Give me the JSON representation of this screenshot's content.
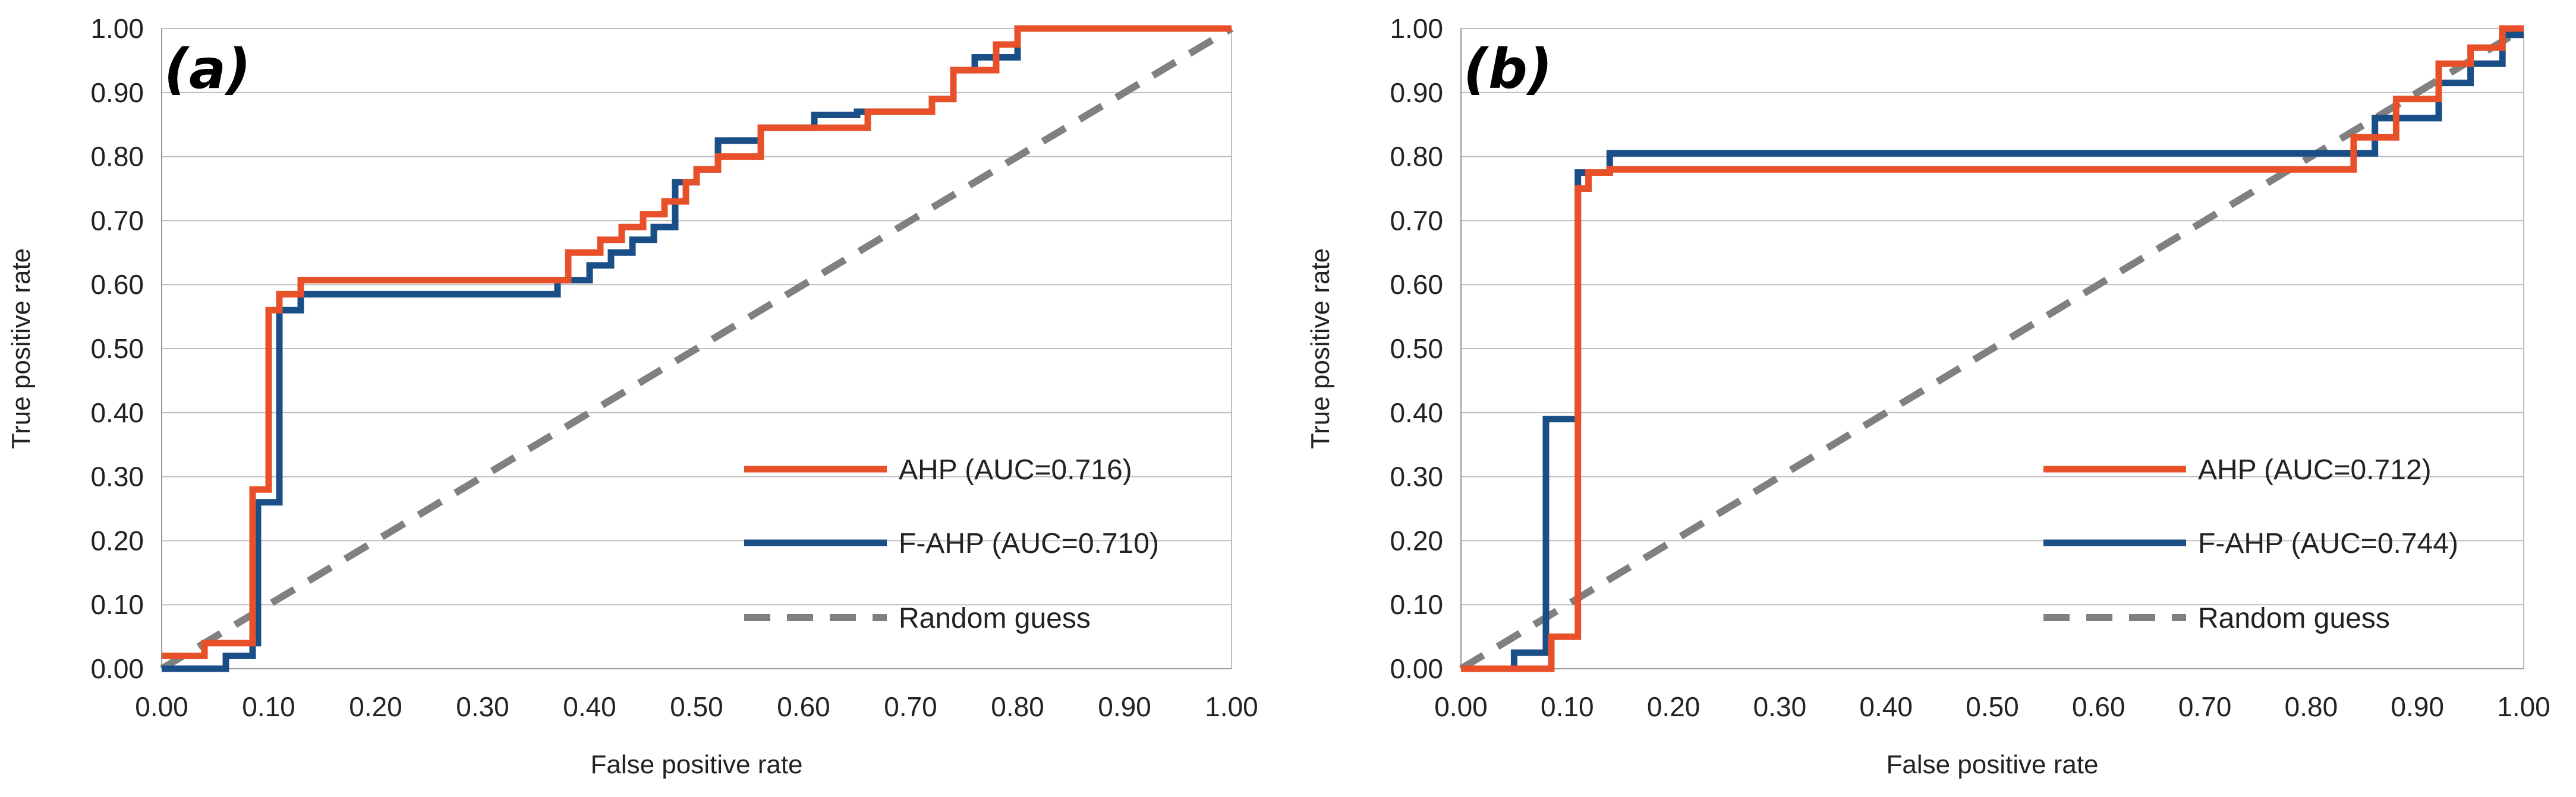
{
  "chart_data": [
    {
      "type": "line",
      "panel_label": "(a)",
      "xlabel": "False positive rate",
      "ylabel": "True positive rate",
      "xlim": [
        0,
        1
      ],
      "ylim": [
        0,
        1
      ],
      "xticks": [
        "0.00",
        "0.10",
        "0.20",
        "0.30",
        "0.40",
        "0.50",
        "0.60",
        "0.70",
        "0.80",
        "0.90",
        "1.00"
      ],
      "yticks": [
        "0.00",
        "0.10",
        "0.20",
        "0.30",
        "0.40",
        "0.50",
        "0.60",
        "0.70",
        "0.80",
        "0.90",
        "1.00"
      ],
      "grid": "horizontal",
      "legend_position": "bottom-right",
      "series": [
        {
          "name": "AHP (AUC=0.716)",
          "color": "#E8502A",
          "style": "solid",
          "x": [
            0,
            0.04,
            0.04,
            0.085,
            0.085,
            0.1,
            0.1,
            0.11,
            0.11,
            0.13,
            0.13,
            0.38,
            0.38,
            0.41,
            0.41,
            0.43,
            0.43,
            0.45,
            0.45,
            0.47,
            0.47,
            0.49,
            0.49,
            0.5,
            0.5,
            0.52,
            0.52,
            0.56,
            0.56,
            0.66,
            0.66,
            0.72,
            0.72,
            0.74,
            0.74,
            0.78,
            0.78,
            0.8,
            0.8,
            1.0
          ],
          "y": [
            0.02,
            0.02,
            0.04,
            0.04,
            0.28,
            0.28,
            0.56,
            0.56,
            0.585,
            0.585,
            0.607,
            0.607,
            0.65,
            0.65,
            0.67,
            0.67,
            0.69,
            0.69,
            0.71,
            0.71,
            0.73,
            0.73,
            0.76,
            0.76,
            0.78,
            0.78,
            0.8,
            0.8,
            0.845,
            0.845,
            0.87,
            0.87,
            0.89,
            0.89,
            0.935,
            0.935,
            0.975,
            0.975,
            1.0,
            1.0
          ]
        },
        {
          "name": "F-AHP (AUC=0.710)",
          "color": "#1A4E86",
          "style": "solid",
          "x": [
            0,
            0.06,
            0.06,
            0.085,
            0.085,
            0.09,
            0.09,
            0.11,
            0.11,
            0.13,
            0.13,
            0.37,
            0.37,
            0.4,
            0.4,
            0.42,
            0.42,
            0.44,
            0.44,
            0.46,
            0.46,
            0.48,
            0.48,
            0.5,
            0.5,
            0.52,
            0.52,
            0.56,
            0.56,
            0.61,
            0.61,
            0.65,
            0.65,
            0.72,
            0.72,
            0.74,
            0.74,
            0.76,
            0.76,
            0.8,
            0.8,
            1.0
          ],
          "y": [
            0.0,
            0.0,
            0.02,
            0.02,
            0.04,
            0.04,
            0.26,
            0.26,
            0.56,
            0.56,
            0.585,
            0.585,
            0.607,
            0.607,
            0.63,
            0.63,
            0.65,
            0.65,
            0.67,
            0.67,
            0.69,
            0.69,
            0.76,
            0.76,
            0.78,
            0.78,
            0.825,
            0.825,
            0.845,
            0.845,
            0.865,
            0.865,
            0.87,
            0.87,
            0.89,
            0.89,
            0.935,
            0.935,
            0.955,
            0.955,
            1.0,
            1.0
          ]
        },
        {
          "name": "Random guess",
          "color": "#808080",
          "style": "dashed",
          "x": [
            0,
            1
          ],
          "y": [
            0,
            1
          ]
        }
      ]
    },
    {
      "type": "line",
      "panel_label": "(b)",
      "xlabel": "False positive rate",
      "ylabel": "True positive rate",
      "xlim": [
        0,
        1
      ],
      "ylim": [
        0,
        1
      ],
      "xticks": [
        "0.00",
        "0.10",
        "0.20",
        "0.30",
        "0.40",
        "0.50",
        "0.60",
        "0.70",
        "0.80",
        "0.90",
        "1.00"
      ],
      "yticks": [
        "0.00",
        "0.10",
        "0.20",
        "0.30",
        "0.40",
        "0.50",
        "0.60",
        "0.70",
        "0.80",
        "0.90",
        "1.00"
      ],
      "grid": "horizontal",
      "legend_position": "bottom-right",
      "series": [
        {
          "name": "AHP (AUC=0.712)",
          "color": "#E8502A",
          "style": "solid",
          "x": [
            0,
            0.085,
            0.085,
            0.11,
            0.11,
            0.12,
            0.12,
            0.14,
            0.14,
            0.84,
            0.84,
            0.88,
            0.88,
            0.92,
            0.92,
            0.95,
            0.95,
            0.98,
            0.98,
            1.0
          ],
          "y": [
            0.0,
            0.0,
            0.05,
            0.05,
            0.75,
            0.75,
            0.775,
            0.775,
            0.78,
            0.78,
            0.83,
            0.83,
            0.89,
            0.89,
            0.945,
            0.945,
            0.97,
            0.97,
            1.0,
            1.0
          ],
          "override_y_first": true
        },
        {
          "name": "F-AHP (AUC=0.744)",
          "color": "#1A4E86",
          "style": "solid",
          "x": [
            0,
            0.05,
            0.05,
            0.08,
            0.08,
            0.11,
            0.11,
            0.14,
            0.14,
            0.86,
            0.86,
            0.92,
            0.92,
            0.95,
            0.95,
            0.98,
            0.98,
            1.0
          ],
          "y": [
            0.0,
            0.0,
            0.025,
            0.025,
            0.39,
            0.39,
            0.775,
            0.775,
            0.805,
            0.805,
            0.86,
            0.86,
            0.915,
            0.915,
            0.945,
            0.945,
            0.99,
            0.99
          ]
        },
        {
          "name": "Random guess",
          "color": "#808080",
          "style": "dashed",
          "x": [
            0,
            1
          ],
          "y": [
            0,
            1
          ]
        }
      ]
    }
  ]
}
